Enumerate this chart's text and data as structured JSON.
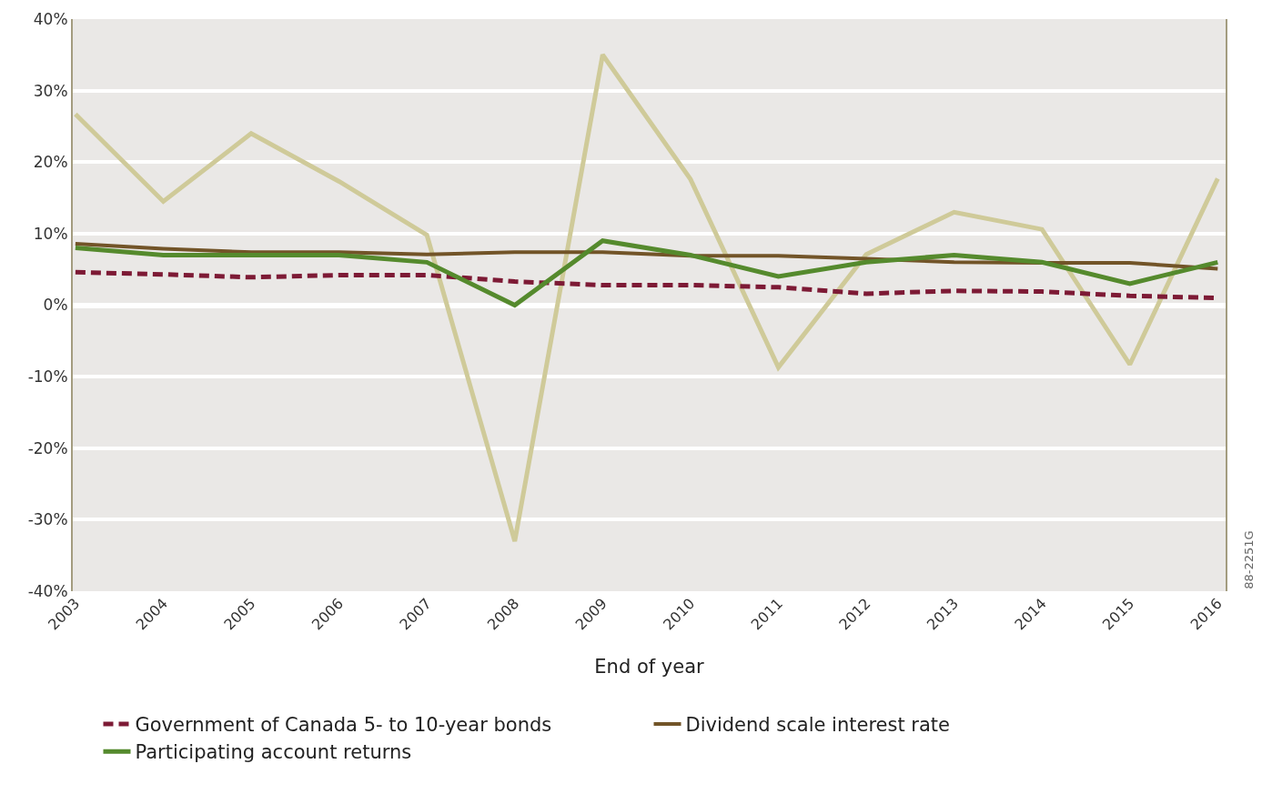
{
  "chart_data": {
    "type": "line",
    "xlabel": "End of year",
    "categories": [
      "2003",
      "2004",
      "2005",
      "2006",
      "2007",
      "2008",
      "2009",
      "2010",
      "2011",
      "2012",
      "2013",
      "2014",
      "2015",
      "2016"
    ],
    "ylim": [
      -40,
      40
    ],
    "yticks": [
      {
        "value": -40,
        "label": "-40%"
      },
      {
        "value": -30,
        "label": "-30%"
      },
      {
        "value": -20,
        "label": "-20%"
      },
      {
        "value": -10,
        "label": "-10%"
      },
      {
        "value": 0,
        "label": "0%"
      },
      {
        "value": 10,
        "label": "10%"
      },
      {
        "value": 20,
        "label": "20%"
      },
      {
        "value": 30,
        "label": "30%"
      },
      {
        "value": 40,
        "label": "40%"
      }
    ],
    "grid": "y",
    "legend": "bottom",
    "marker": "none",
    "series": [
      {
        "color": "#cfca99",
        "values": [
          26.7,
          14.5,
          24,
          17.3,
          9.8,
          -33,
          35,
          17.6,
          -8.7,
          7.1,
          13,
          10.6,
          -8.3,
          17.7
        ]
      },
      {
        "name": "Government of Canada 5- to 10-year bonds",
        "color": "#7d1a35",
        "line_style": "dashed",
        "values": [
          4.6,
          4.3,
          3.9,
          4.2,
          4.2,
          3.3,
          2.8,
          2.8,
          2.5,
          1.6,
          2.0,
          1.9,
          1.3,
          1.0
        ]
      },
      {
        "name": "Dividend scale interest rate",
        "color": "#725428",
        "values": [
          8.6,
          7.9,
          7.4,
          7.4,
          7.1,
          7.4,
          7.4,
          6.9,
          6.9,
          6.5,
          6.0,
          5.9,
          5.9,
          5.1
        ]
      },
      {
        "name": "Participating account returns",
        "color": "#558a2d",
        "values": [
          8,
          7,
          7,
          7,
          6,
          0,
          9,
          7,
          4,
          6,
          7,
          6,
          3,
          6
        ]
      }
    ],
    "annotations": [
      "88-2251G"
    ]
  }
}
